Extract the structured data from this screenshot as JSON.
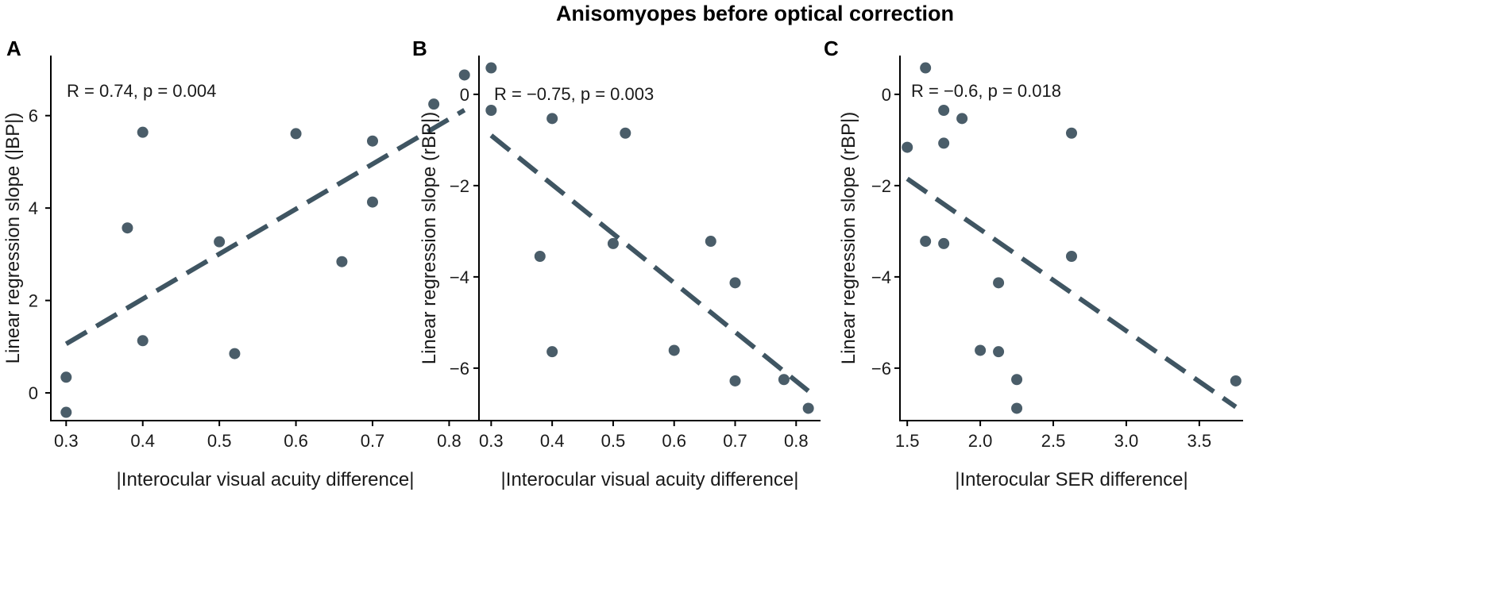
{
  "figure_title": "Anisomyopes before optical correction",
  "colors": {
    "point": "#4a5d69",
    "line": "#3f5562",
    "axis": "#000000",
    "text": "#1a1a1a"
  },
  "chart_data": [
    {
      "panel": "A",
      "type": "scatter",
      "title": "",
      "xlabel": "|Interocular visual acuity difference|",
      "ylabel": "Linear regression slope (|BP|)",
      "annotation": "R = 0.74, p = 0.004",
      "xlim": [
        0.28,
        0.84
      ],
      "ylim": [
        -0.6,
        7.3
      ],
      "xticks": [
        0.3,
        0.4,
        0.5,
        0.6,
        0.7,
        0.8
      ],
      "xtick_labels": [
        "0.3",
        "0.4",
        "0.5",
        "0.6",
        "0.7",
        "0.8"
      ],
      "yticks": [
        0,
        2,
        4,
        6
      ],
      "ytick_labels": [
        "0",
        "2",
        "4",
        "6"
      ],
      "points": [
        {
          "x": 0.3,
          "y": -0.42
        },
        {
          "x": 0.3,
          "y": 0.34
        },
        {
          "x": 0.38,
          "y": 3.57
        },
        {
          "x": 0.4,
          "y": 5.64
        },
        {
          "x": 0.4,
          "y": 1.13
        },
        {
          "x": 0.5,
          "y": 3.27
        },
        {
          "x": 0.52,
          "y": 0.85
        },
        {
          "x": 0.6,
          "y": 5.61
        },
        {
          "x": 0.66,
          "y": 2.84
        },
        {
          "x": 0.7,
          "y": 5.45
        },
        {
          "x": 0.7,
          "y": 4.13
        },
        {
          "x": 0.78,
          "y": 6.25
        },
        {
          "x": 0.82,
          "y": 6.88
        }
      ],
      "fit_line": {
        "x": [
          0.3,
          0.82
        ],
        "y": [
          1.06,
          6.12
        ],
        "style": "dashed"
      }
    },
    {
      "panel": "B",
      "type": "scatter",
      "title": "",
      "xlabel": "|Interocular visual acuity difference|",
      "ylabel": "Linear regression slope (rBP|)",
      "annotation": "R = −0.75, p = 0.003",
      "xlim": [
        0.28,
        0.84
      ],
      "ylim": [
        -7.15,
        0.85
      ],
      "xticks": [
        0.3,
        0.4,
        0.5,
        0.6,
        0.7,
        0.8
      ],
      "xtick_labels": [
        "0.3",
        "0.4",
        "0.5",
        "0.6",
        "0.7",
        "0.8"
      ],
      "yticks": [
        0,
        -2,
        -4,
        -6
      ],
      "ytick_labels": [
        "0",
        "−2",
        "−4",
        "−6"
      ],
      "points": [
        {
          "x": 0.3,
          "y": 0.58
        },
        {
          "x": 0.3,
          "y": -0.35
        },
        {
          "x": 0.38,
          "y": -3.55
        },
        {
          "x": 0.4,
          "y": -0.53
        },
        {
          "x": 0.4,
          "y": -5.64
        },
        {
          "x": 0.5,
          "y": -3.27
        },
        {
          "x": 0.52,
          "y": -0.85
        },
        {
          "x": 0.6,
          "y": -5.61
        },
        {
          "x": 0.66,
          "y": -3.22
        },
        {
          "x": 0.7,
          "y": -4.13
        },
        {
          "x": 0.7,
          "y": -6.28
        },
        {
          "x": 0.78,
          "y": -6.25
        },
        {
          "x": 0.82,
          "y": -6.88
        }
      ],
      "fit_line": {
        "x": [
          0.3,
          0.82
        ],
        "y": [
          -0.9,
          -6.5
        ],
        "style": "dashed"
      }
    },
    {
      "panel": "C",
      "type": "scatter",
      "title": "",
      "xlabel": "|Interocular SER difference|",
      "ylabel": "Linear regression slope (rBP|)",
      "annotation": "R = −0.6, p = 0.018",
      "xlim": [
        1.45,
        3.8
      ],
      "ylim": [
        -7.15,
        0.85
      ],
      "xticks": [
        1.5,
        2.0,
        2.5,
        3.0,
        3.5
      ],
      "xtick_labels": [
        "1.5",
        "2.0",
        "2.5",
        "3.0",
        "3.5"
      ],
      "yticks": [
        0,
        -2,
        -4,
        -6
      ],
      "ytick_labels": [
        "0",
        "−2",
        "−4",
        "−6"
      ],
      "points": [
        {
          "x": 1.5,
          "y": -1.16
        },
        {
          "x": 1.625,
          "y": 0.58
        },
        {
          "x": 1.625,
          "y": -3.22
        },
        {
          "x": 1.75,
          "y": -0.35
        },
        {
          "x": 1.75,
          "y": -1.07
        },
        {
          "x": 1.75,
          "y": -3.27
        },
        {
          "x": 1.875,
          "y": -0.53
        },
        {
          "x": 2.0,
          "y": -5.61
        },
        {
          "x": 2.125,
          "y": -4.13
        },
        {
          "x": 2.125,
          "y": -5.64
        },
        {
          "x": 2.25,
          "y": -6.25
        },
        {
          "x": 2.25,
          "y": -6.88
        },
        {
          "x": 2.625,
          "y": -0.85
        },
        {
          "x": 2.625,
          "y": -3.55
        },
        {
          "x": 3.75,
          "y": -6.28
        }
      ],
      "fit_line": {
        "x": [
          1.5,
          3.75
        ],
        "y": [
          -1.85,
          -6.85
        ],
        "style": "dashed"
      }
    }
  ]
}
